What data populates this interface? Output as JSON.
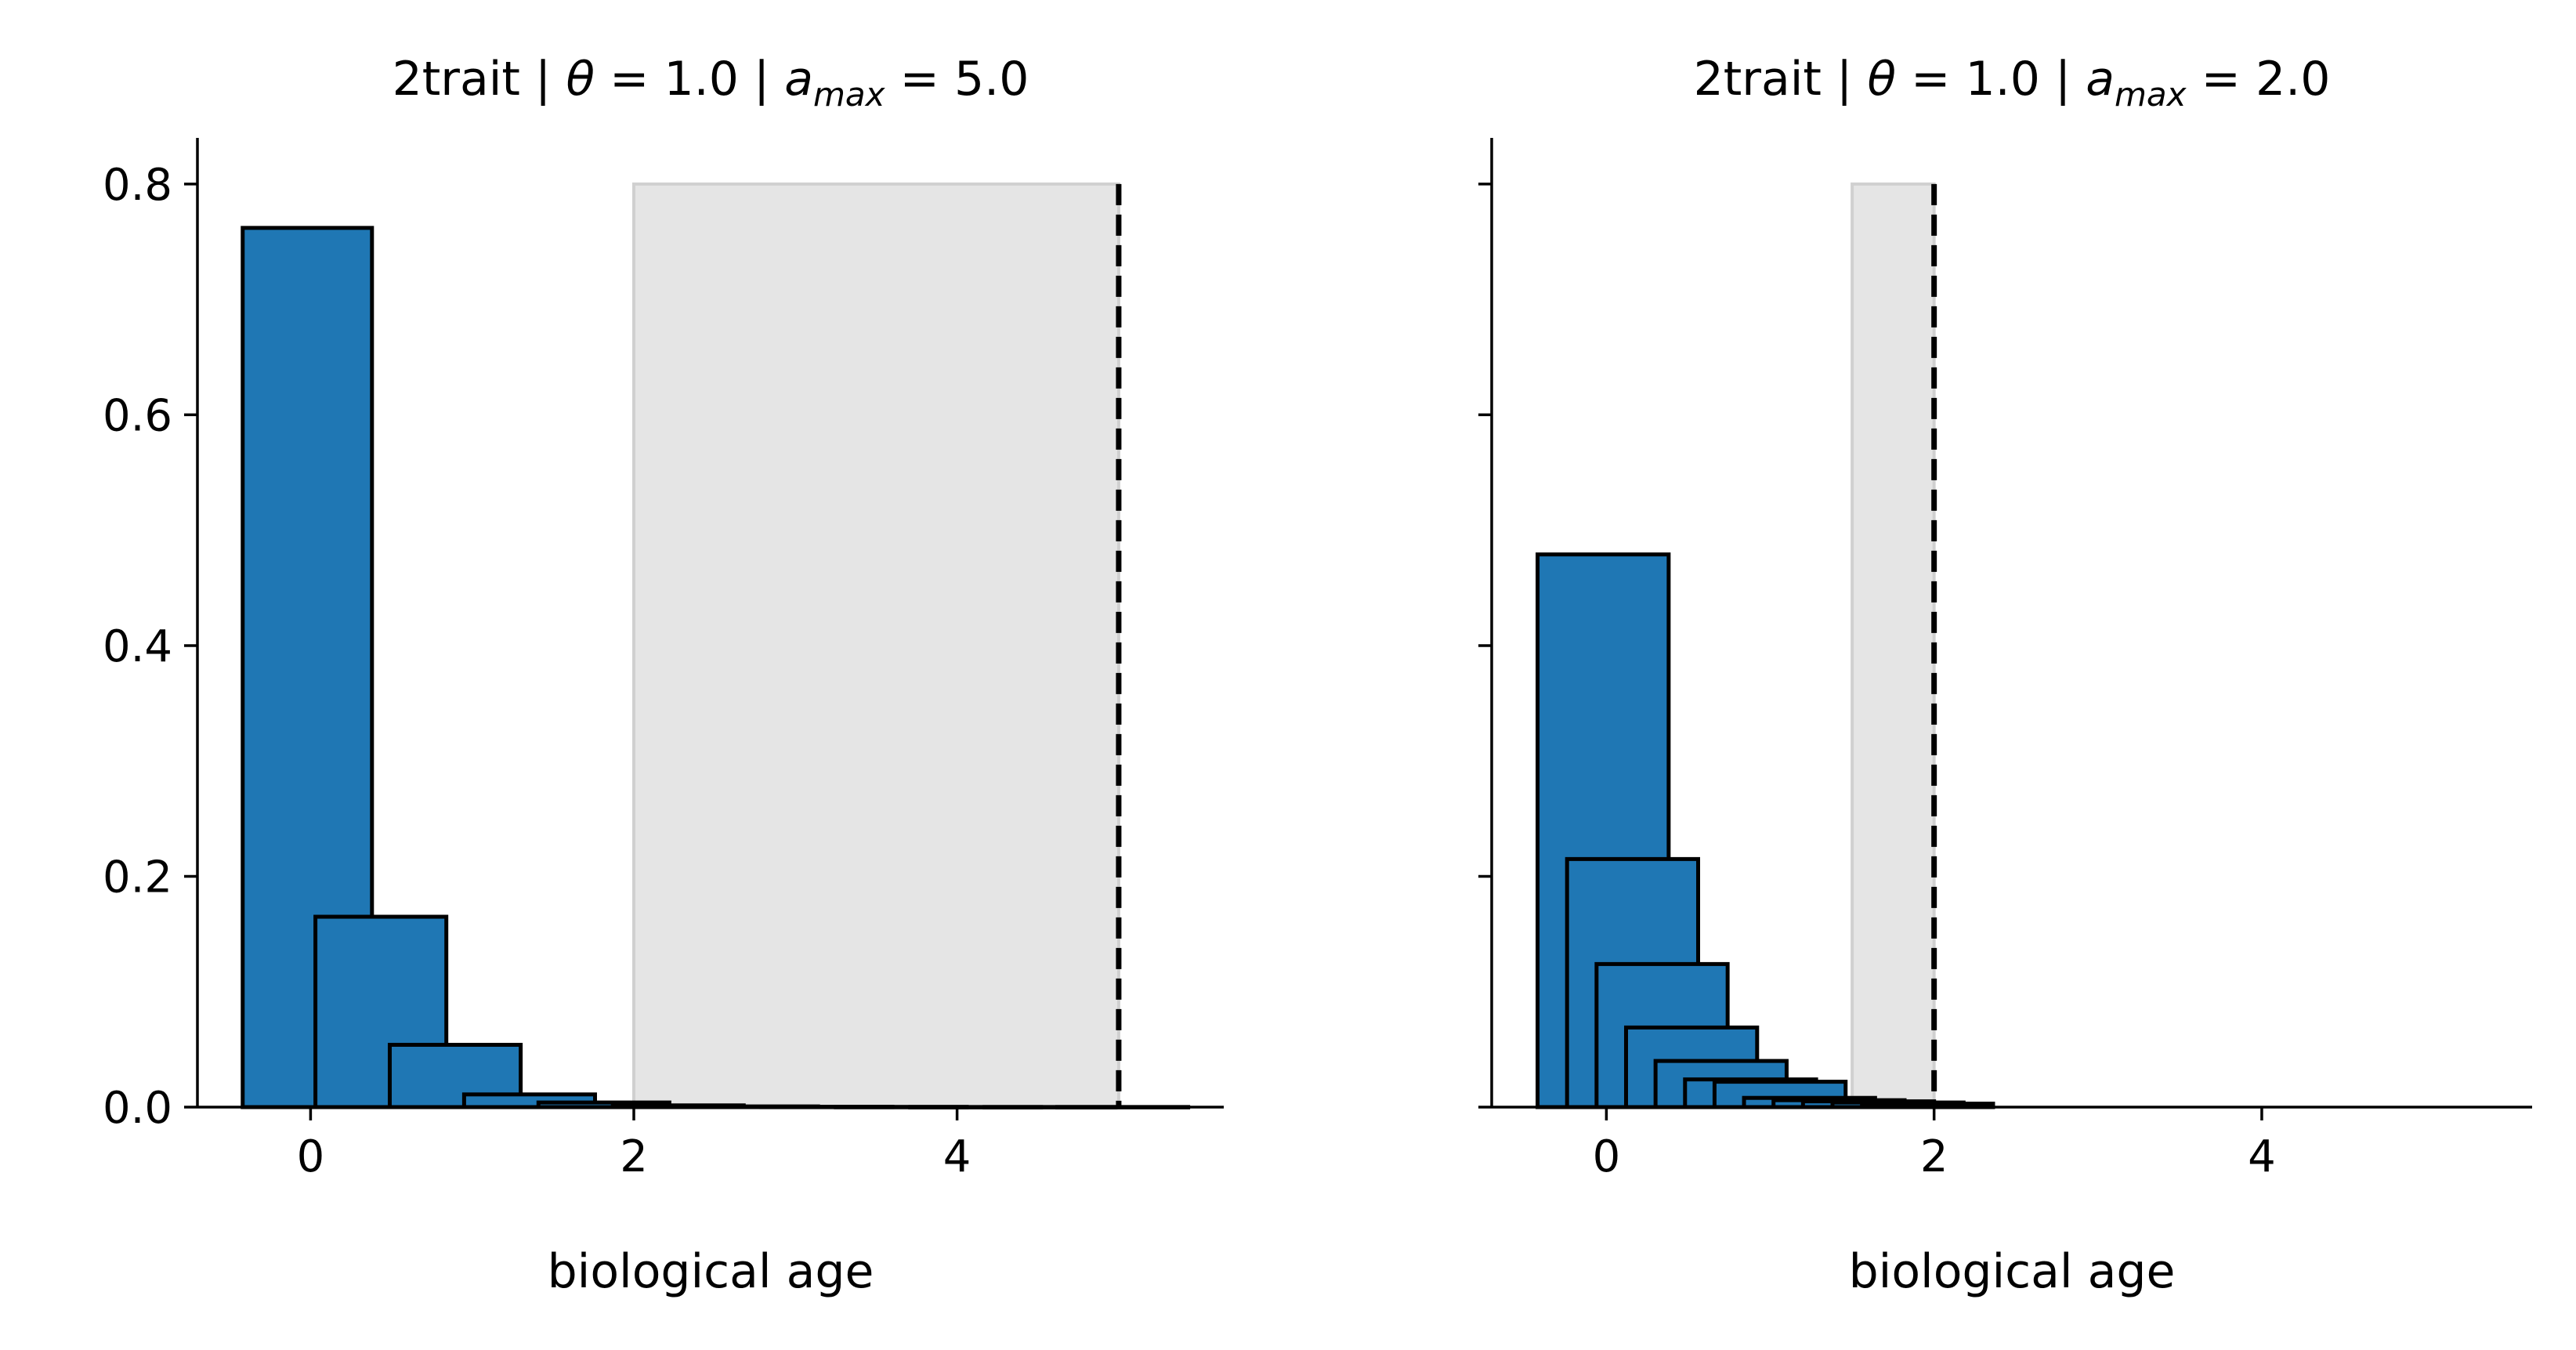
{
  "chart_data": [
    {
      "type": "bar",
      "title_parts": [
        "2trait | ",
        "θ",
        " = 1.0 | ",
        "a",
        "max",
        " = 5.0"
      ],
      "xlabel": "biological age",
      "ylabel": "",
      "xlim": [
        -0.7,
        5.65
      ],
      "ylim": [
        0,
        0.84
      ],
      "xticks": [
        0,
        2,
        4
      ],
      "xtick_labels": [
        "0",
        "2",
        "4"
      ],
      "yticks": [
        0.0,
        0.2,
        0.4,
        0.6,
        0.8
      ],
      "ytick_labels": [
        "0.0",
        "0.2",
        "0.4",
        "0.6",
        "0.8"
      ],
      "show_ytick_labels": true,
      "grid": false,
      "bar_color": "#1f77b4",
      "bar_edge_color": "#000000",
      "shade_color": "#e5e5e5",
      "shade_range": [
        2.0,
        5.0
      ],
      "shade_top": 0.8,
      "vline_x": 5.0,
      "bars": [
        {
          "left": -0.42,
          "right": 0.38,
          "value": 0.762
        },
        {
          "left": 0.03,
          "right": 0.84,
          "value": 0.165
        },
        {
          "left": 0.49,
          "right": 1.3,
          "value": 0.054
        },
        {
          "left": 0.95,
          "right": 1.76,
          "value": 0.011
        },
        {
          "left": 1.41,
          "right": 2.22,
          "value": 0.004
        },
        {
          "left": 1.87,
          "right": 2.68,
          "value": 0.0015
        },
        {
          "left": 2.33,
          "right": 3.14,
          "value": 0.0006
        },
        {
          "left": 2.79,
          "right": 3.6,
          "value": 0.0003
        },
        {
          "left": 3.25,
          "right": 4.06,
          "value": 0.0002
        },
        {
          "left": 3.71,
          "right": 4.52,
          "value": 0.0001
        },
        {
          "left": 4.17,
          "right": 4.98,
          "value": 0.0001
        },
        {
          "left": 4.62,
          "right": 5.43,
          "value": 0.0001
        }
      ]
    },
    {
      "type": "bar",
      "title_parts": [
        "2trait | ",
        "θ",
        " = 1.0 | ",
        "a",
        "max",
        " = 2.0"
      ],
      "xlabel": "biological age",
      "ylabel": "",
      "xlim": [
        -0.7,
        5.65
      ],
      "ylim": [
        0,
        0.84
      ],
      "xticks": [
        0,
        2,
        4
      ],
      "xtick_labels": [
        "0",
        "2",
        "4"
      ],
      "yticks": [
        0.0,
        0.2,
        0.4,
        0.6,
        0.8
      ],
      "ytick_labels": [
        "",
        "",
        "",
        "",
        ""
      ],
      "show_ytick_labels": false,
      "grid": false,
      "bar_color": "#1f77b4",
      "bar_edge_color": "#000000",
      "shade_color": "#e5e5e5",
      "shade_range": [
        1.5,
        2.0
      ],
      "shade_top": 0.8,
      "vline_x": 2.0,
      "bars": [
        {
          "left": -0.42,
          "right": 0.38,
          "value": 0.479
        },
        {
          "left": -0.24,
          "right": 0.56,
          "value": 0.215
        },
        {
          "left": -0.06,
          "right": 0.74,
          "value": 0.124
        },
        {
          "left": 0.12,
          "right": 0.92,
          "value": 0.069
        },
        {
          "left": 0.3,
          "right": 1.1,
          "value": 0.04
        },
        {
          "left": 0.48,
          "right": 1.28,
          "value": 0.024
        },
        {
          "left": 0.66,
          "right": 1.46,
          "value": 0.022
        },
        {
          "left": 0.84,
          "right": 1.64,
          "value": 0.008
        },
        {
          "left": 1.02,
          "right": 1.82,
          "value": 0.006
        },
        {
          "left": 1.2,
          "right": 2.0,
          "value": 0.005
        },
        {
          "left": 1.38,
          "right": 2.18,
          "value": 0.004
        },
        {
          "left": 1.56,
          "right": 2.36,
          "value": 0.003
        }
      ]
    }
  ]
}
